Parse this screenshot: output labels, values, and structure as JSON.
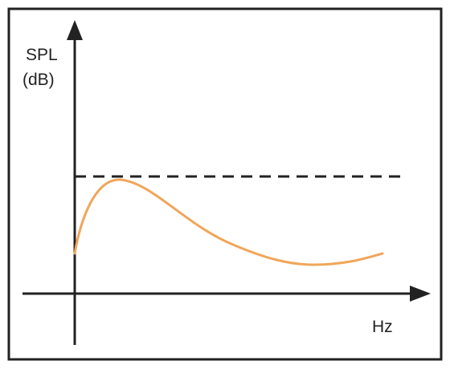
{
  "diagram": {
    "y_axis_label_line1": "SPL",
    "y_axis_label_line2": "(dB)",
    "x_axis_label": "Hz",
    "reference_line_style": "dashed",
    "colors": {
      "frame": "#222222",
      "axes": "#222222",
      "reference_line": "#222222",
      "response_curve": "#f0a65a"
    }
  }
}
